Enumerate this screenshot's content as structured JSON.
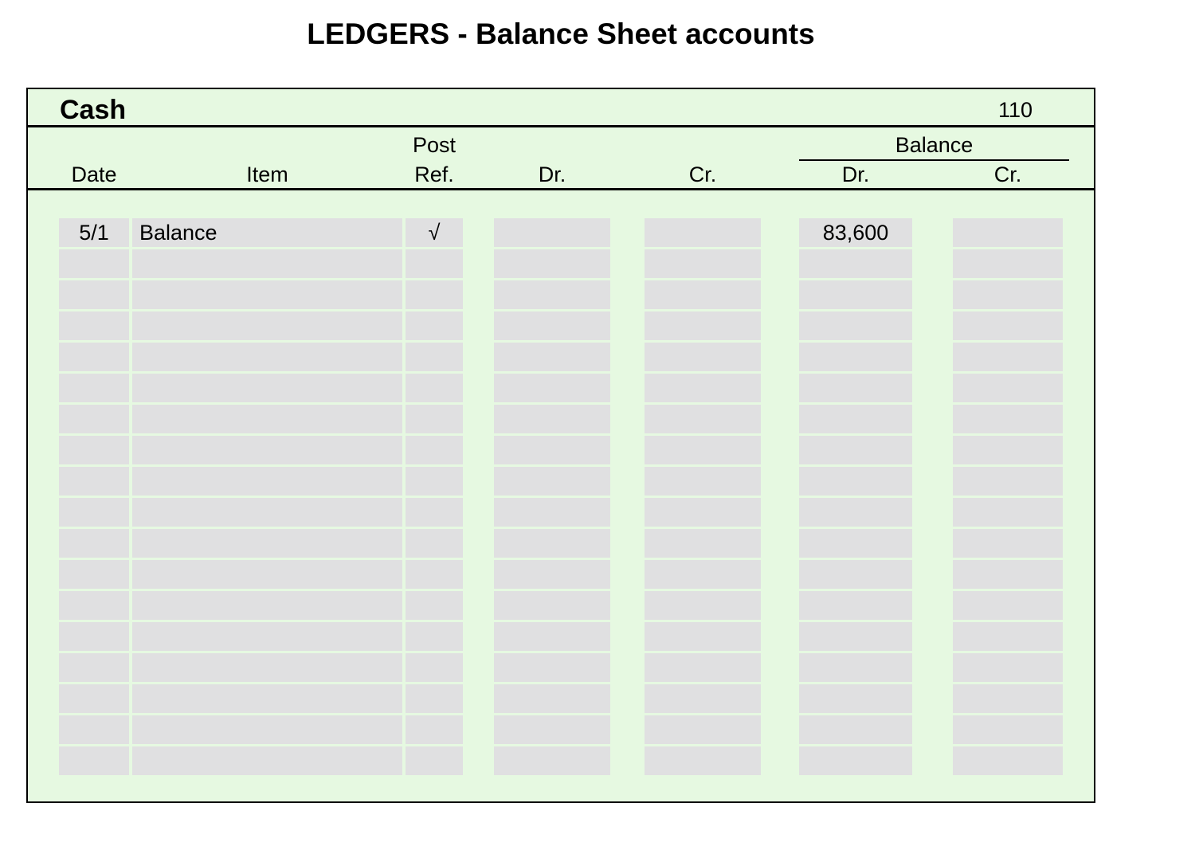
{
  "page_title": "LEDGERS - Balance Sheet accounts",
  "ledger": {
    "account_name": "Cash",
    "account_number": "110",
    "headers": {
      "date": "Date",
      "item": "Item",
      "post_ref_line1": "Post",
      "post_ref_line2": "Ref.",
      "dr": "Dr.",
      "cr": "Cr.",
      "balance_group": "Balance",
      "balance_dr": "Dr.",
      "balance_cr": "Cr."
    },
    "row_count": 18,
    "rows": [
      {
        "date": "5/1",
        "item": "Balance",
        "post_ref": "√",
        "dr": "",
        "cr": "",
        "balance_dr": "83,600",
        "balance_cr": ""
      }
    ]
  },
  "colors": {
    "card_background": "#e6f9e1",
    "cell_background": "#e0e0e1",
    "border": "#000000"
  }
}
